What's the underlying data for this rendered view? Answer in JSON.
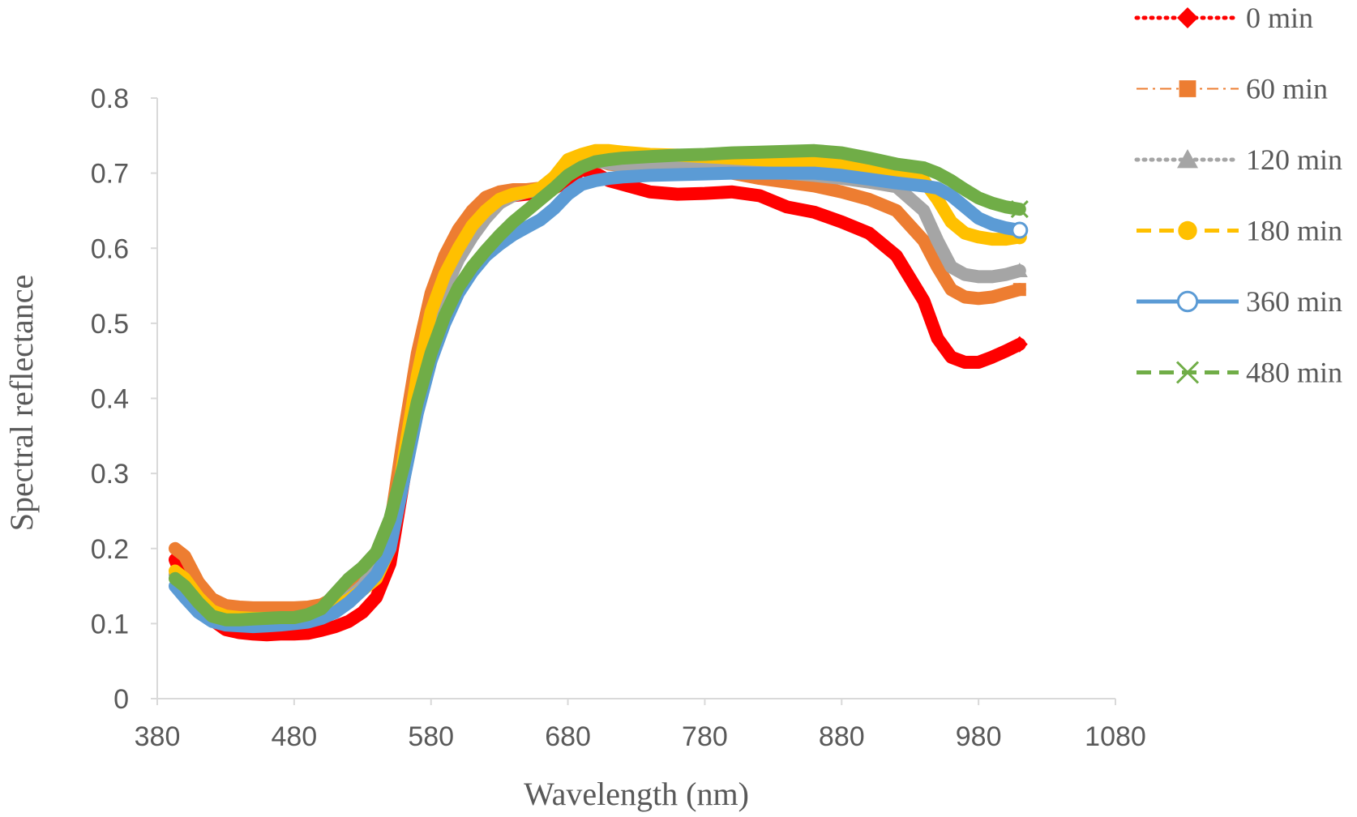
{
  "chart_data": {
    "type": "line",
    "title": "",
    "xlabel": "Wavelength (nm)",
    "ylabel": "Spectral reflectance",
    "xlim": [
      380,
      1080
    ],
    "ylim": [
      0,
      0.8
    ],
    "x_ticks": [
      "380",
      "480",
      "580",
      "680",
      "780",
      "880",
      "980",
      "1080"
    ],
    "y_ticks": [
      "0",
      "0.1",
      "0.2",
      "0.3",
      "0.4",
      "0.5",
      "0.6",
      "0.7",
      "0.8"
    ],
    "grid": false,
    "legend_position": "right",
    "x": [
      393,
      400,
      410,
      420,
      430,
      440,
      450,
      460,
      470,
      480,
      490,
      500,
      510,
      520,
      530,
      540,
      550,
      560,
      570,
      580,
      590,
      600,
      610,
      620,
      630,
      640,
      650,
      660,
      670,
      680,
      690,
      700,
      710,
      720,
      740,
      760,
      780,
      800,
      820,
      840,
      860,
      880,
      900,
      920,
      940,
      950,
      960,
      970,
      980,
      990,
      1000,
      1010
    ],
    "series": [
      {
        "name": "0 min",
        "color": "#FF0000",
        "dash": "dot",
        "marker": "diamond",
        "values": [
          0.185,
          0.155,
          0.125,
          0.105,
          0.092,
          0.088,
          0.086,
          0.085,
          0.086,
          0.086,
          0.087,
          0.091,
          0.096,
          0.103,
          0.115,
          0.135,
          0.18,
          0.29,
          0.4,
          0.485,
          0.545,
          0.595,
          0.63,
          0.65,
          0.665,
          0.67,
          0.672,
          0.675,
          0.68,
          0.69,
          0.705,
          0.7,
          0.69,
          0.685,
          0.675,
          0.672,
          0.673,
          0.675,
          0.67,
          0.655,
          0.648,
          0.635,
          0.62,
          0.59,
          0.53,
          0.48,
          0.455,
          0.448,
          0.448,
          0.455,
          0.463,
          0.472
        ]
      },
      {
        "name": "60 min",
        "color": "#ED7D31",
        "dash": "dashdot",
        "marker": "square",
        "values": [
          0.2,
          0.19,
          0.155,
          0.133,
          0.124,
          0.122,
          0.121,
          0.121,
          0.121,
          0.121,
          0.122,
          0.125,
          0.135,
          0.15,
          0.165,
          0.185,
          0.23,
          0.35,
          0.46,
          0.54,
          0.59,
          0.625,
          0.65,
          0.668,
          0.675,
          0.678,
          0.678,
          0.68,
          0.69,
          0.71,
          0.72,
          0.718,
          0.712,
          0.71,
          0.708,
          0.707,
          0.705,
          0.7,
          0.693,
          0.688,
          0.683,
          0.675,
          0.665,
          0.65,
          0.61,
          0.575,
          0.545,
          0.535,
          0.533,
          0.535,
          0.54,
          0.545
        ]
      },
      {
        "name": "120 min",
        "color": "#A5A5A5",
        "dash": "dot",
        "marker": "triangle",
        "values": [
          0.165,
          0.155,
          0.13,
          0.115,
          0.109,
          0.106,
          0.105,
          0.105,
          0.105,
          0.106,
          0.108,
          0.112,
          0.12,
          0.135,
          0.15,
          0.175,
          0.215,
          0.31,
          0.41,
          0.49,
          0.545,
          0.585,
          0.615,
          0.64,
          0.66,
          0.67,
          0.675,
          0.678,
          0.688,
          0.705,
          0.715,
          0.716,
          0.713,
          0.71,
          0.71,
          0.71,
          0.71,
          0.708,
          0.705,
          0.7,
          0.697,
          0.693,
          0.688,
          0.682,
          0.65,
          0.61,
          0.575,
          0.565,
          0.562,
          0.562,
          0.565,
          0.57
        ]
      },
      {
        "name": "180 min",
        "color": "#FFC000",
        "dash": "dash",
        "marker": "circle",
        "values": [
          0.17,
          0.16,
          0.135,
          0.117,
          0.11,
          0.108,
          0.107,
          0.107,
          0.107,
          0.107,
          0.11,
          0.115,
          0.122,
          0.132,
          0.145,
          0.16,
          0.2,
          0.32,
          0.43,
          0.515,
          0.565,
          0.6,
          0.63,
          0.65,
          0.665,
          0.672,
          0.675,
          0.68,
          0.695,
          0.718,
          0.725,
          0.73,
          0.73,
          0.728,
          0.725,
          0.724,
          0.722,
          0.72,
          0.718,
          0.716,
          0.715,
          0.712,
          0.708,
          0.7,
          0.69,
          0.665,
          0.635,
          0.62,
          0.615,
          0.612,
          0.612,
          0.615
        ]
      },
      {
        "name": "360 min",
        "color": "#5B9BD5",
        "dash": "solid",
        "marker": "circle-open",
        "values": [
          0.15,
          0.135,
          0.115,
          0.103,
          0.098,
          0.097,
          0.096,
          0.097,
          0.098,
          0.1,
          0.102,
          0.107,
          0.115,
          0.128,
          0.145,
          0.165,
          0.2,
          0.29,
          0.38,
          0.45,
          0.5,
          0.54,
          0.568,
          0.59,
          0.605,
          0.618,
          0.628,
          0.638,
          0.653,
          0.672,
          0.685,
          0.69,
          0.693,
          0.695,
          0.697,
          0.698,
          0.699,
          0.7,
          0.7,
          0.7,
          0.7,
          0.697,
          0.692,
          0.687,
          0.683,
          0.68,
          0.67,
          0.655,
          0.64,
          0.632,
          0.627,
          0.624
        ]
      },
      {
        "name": "480 min",
        "color": "#70AD47",
        "dash": "dash",
        "marker": "x",
        "values": [
          0.16,
          0.15,
          0.128,
          0.11,
          0.105,
          0.105,
          0.106,
          0.107,
          0.108,
          0.108,
          0.112,
          0.12,
          0.14,
          0.16,
          0.175,
          0.195,
          0.24,
          0.31,
          0.395,
          0.46,
          0.51,
          0.548,
          0.575,
          0.597,
          0.617,
          0.635,
          0.65,
          0.665,
          0.68,
          0.697,
          0.708,
          0.715,
          0.718,
          0.72,
          0.722,
          0.724,
          0.725,
          0.727,
          0.728,
          0.729,
          0.73,
          0.727,
          0.72,
          0.712,
          0.707,
          0.7,
          0.69,
          0.678,
          0.667,
          0.66,
          0.655,
          0.652
        ]
      }
    ]
  }
}
